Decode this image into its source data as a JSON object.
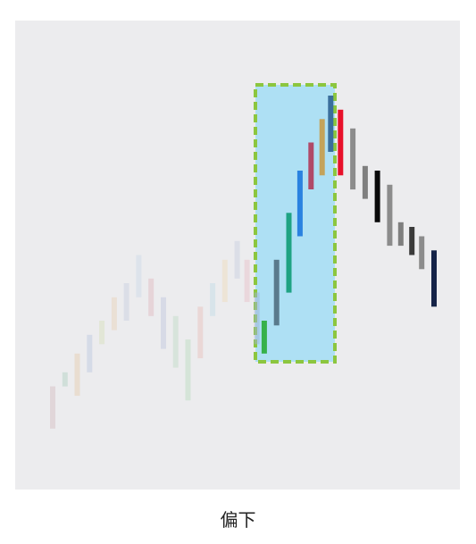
{
  "caption": "偏下",
  "colors": {
    "plot_background": "#ececee",
    "highlight_fill": "#aee0f4",
    "highlight_border": "#8cc63f"
  },
  "chart_data": {
    "type": "bar",
    "subtype": "floating-range",
    "title": "",
    "xlabel": "",
    "ylabel": "",
    "axes_visible": false,
    "grid": false,
    "legend": "none",
    "xlim": [
      0,
      31
    ],
    "ylim": [
      0,
      100
    ],
    "highlight": {
      "x_range": [
        16.9,
        23.1
      ],
      "y_range": [
        27,
        86
      ]
    },
    "bars": [
      {
        "x": 1,
        "low": 13,
        "high": 22,
        "color": "#c8a2a8",
        "opacity": 0.3
      },
      {
        "x": 2,
        "low": 22,
        "high": 25,
        "color": "#8fbfa9",
        "opacity": 0.3
      },
      {
        "x": 3,
        "low": 20,
        "high": 29,
        "color": "#e0b98c",
        "opacity": 0.3
      },
      {
        "x": 4,
        "low": 25,
        "high": 33,
        "color": "#9fb2d6",
        "opacity": 0.3
      },
      {
        "x": 5,
        "low": 31,
        "high": 36,
        "color": "#c9d7a0",
        "opacity": 0.3
      },
      {
        "x": 6,
        "low": 34,
        "high": 41,
        "color": "#e6c49a",
        "opacity": 0.3
      },
      {
        "x": 7,
        "low": 36,
        "high": 44,
        "color": "#b4bcd8",
        "opacity": 0.3
      },
      {
        "x": 8,
        "low": 41,
        "high": 50,
        "color": "#b8cde6",
        "opacity": 0.3
      },
      {
        "x": 9,
        "low": 37,
        "high": 45,
        "color": "#d89aa6",
        "opacity": 0.3
      },
      {
        "x": 10,
        "low": 30,
        "high": 41,
        "color": "#a5aed4",
        "opacity": 0.3
      },
      {
        "x": 11,
        "low": 26,
        "high": 37,
        "color": "#a5cfb0",
        "opacity": 0.3
      },
      {
        "x": 12,
        "low": 19,
        "high": 32,
        "color": "#9fcfa5",
        "opacity": 0.3
      },
      {
        "x": 13,
        "low": 28,
        "high": 39,
        "color": "#e6a7a0",
        "opacity": 0.3
      },
      {
        "x": 14,
        "low": 37,
        "high": 44,
        "color": "#a9cfe0",
        "opacity": 0.3
      },
      {
        "x": 15,
        "low": 40,
        "high": 49,
        "color": "#f0cfa0",
        "opacity": 0.3
      },
      {
        "x": 16,
        "low": 45,
        "high": 53,
        "color": "#b4bcd8",
        "opacity": 0.3
      },
      {
        "x": 16.8,
        "low": 40,
        "high": 49,
        "color": "#e6a7b4",
        "opacity": 0.3
      },
      {
        "x": 17.6,
        "low": 31,
        "high": 42,
        "color": "#9fb2d6",
        "opacity": 0.5
      },
      {
        "x": 18.2,
        "low": 29,
        "high": 36,
        "color": "#36b14a",
        "opacity": 1
      },
      {
        "x": 19.2,
        "low": 35,
        "high": 49,
        "color": "#5a7a8c",
        "opacity": 1
      },
      {
        "x": 20.2,
        "low": 42,
        "high": 59,
        "color": "#1fa383",
        "opacity": 1
      },
      {
        "x": 21.1,
        "low": 54,
        "high": 68,
        "color": "#2a82e0",
        "opacity": 1
      },
      {
        "x": 22.0,
        "low": 64,
        "high": 74,
        "color": "#b04a68",
        "opacity": 1
      },
      {
        "x": 22.9,
        "low": 67,
        "high": 79,
        "color": "#c4a35a",
        "opacity": 1
      },
      {
        "x": 23.6,
        "low": 72,
        "high": 84,
        "color": "#3a6e9c",
        "opacity": 1
      },
      {
        "x": 24.4,
        "low": 67,
        "high": 81,
        "color": "#e8102a",
        "opacity": 1
      },
      {
        "x": 25.4,
        "low": 64,
        "high": 77,
        "color": "#8c8c8c",
        "opacity": 1
      },
      {
        "x": 26.4,
        "low": 62,
        "high": 69,
        "color": "#7f7f7f",
        "opacity": 1
      },
      {
        "x": 27.4,
        "low": 57,
        "high": 68,
        "color": "#0a0a0a",
        "opacity": 1
      },
      {
        "x": 28.4,
        "low": 52,
        "high": 65,
        "color": "#8c8c8c",
        "opacity": 1
      },
      {
        "x": 29.3,
        "low": 52,
        "high": 57,
        "color": "#7f7f7f",
        "opacity": 1
      },
      {
        "x": 30.2,
        "low": 50,
        "high": 56,
        "color": "#3a3a3a",
        "opacity": 1
      },
      {
        "x": 31.0,
        "low": 47,
        "high": 54,
        "color": "#8c8c8c",
        "opacity": 1
      },
      {
        "x": 32.0,
        "low": 39,
        "high": 51,
        "color": "#152347",
        "opacity": 1
      }
    ]
  }
}
